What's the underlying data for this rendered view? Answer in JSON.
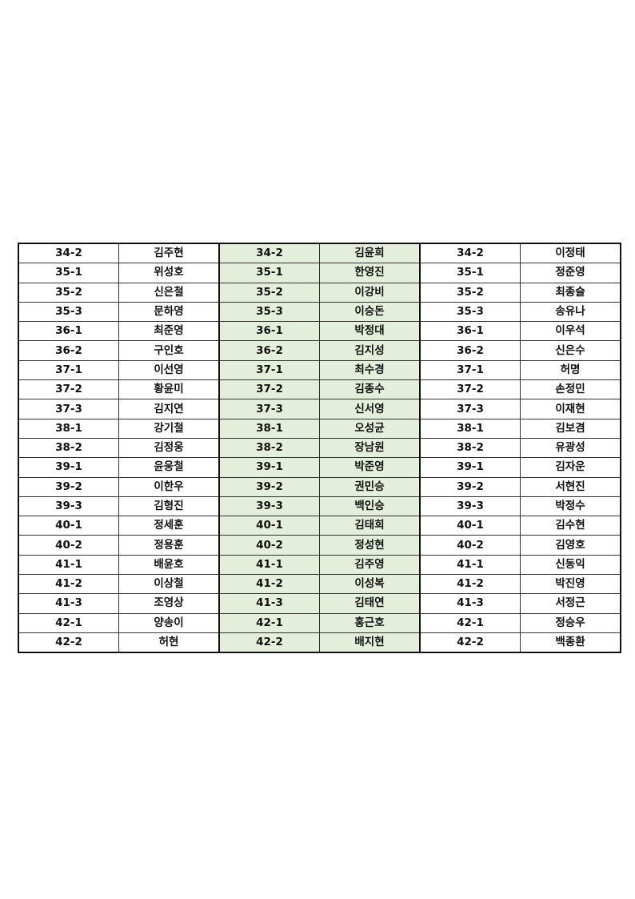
{
  "colors": {
    "middle_group_bg": "#e4efdb",
    "border": "#111111"
  },
  "table": {
    "groups": [
      {
        "rows": [
          [
            "34-2",
            "김주현"
          ],
          [
            "35-1",
            "위성호"
          ],
          [
            "35-2",
            "신은철"
          ],
          [
            "35-3",
            "문하영"
          ],
          [
            "36-1",
            "최준영"
          ],
          [
            "36-2",
            "구인호"
          ],
          [
            "37-1",
            "이선영"
          ],
          [
            "37-2",
            "황윤미"
          ],
          [
            "37-3",
            "김지연"
          ],
          [
            "38-1",
            "강기철"
          ],
          [
            "38-2",
            "김정웅"
          ],
          [
            "39-1",
            "윤웅철"
          ],
          [
            "39-2",
            "이한우"
          ],
          [
            "39-3",
            "김형진"
          ],
          [
            "40-1",
            "정세훈"
          ],
          [
            "40-2",
            "정용훈"
          ],
          [
            "41-1",
            "배윤호"
          ],
          [
            "41-2",
            "이상철"
          ],
          [
            "41-3",
            "조영상"
          ],
          [
            "42-1",
            "양송이"
          ],
          [
            "42-2",
            "허현"
          ]
        ]
      },
      {
        "rows": [
          [
            "34-2",
            "김윤희"
          ],
          [
            "35-1",
            "한영진"
          ],
          [
            "35-2",
            "이강비"
          ],
          [
            "35-3",
            "이승돈"
          ],
          [
            "36-1",
            "박정대"
          ],
          [
            "36-2",
            "김지성"
          ],
          [
            "37-1",
            "최수경"
          ],
          [
            "37-2",
            "김종수"
          ],
          [
            "37-3",
            "신서영"
          ],
          [
            "38-1",
            "오성균"
          ],
          [
            "38-2",
            "장남원"
          ],
          [
            "39-1",
            "박준영"
          ],
          [
            "39-2",
            "권민승"
          ],
          [
            "39-3",
            "백인승"
          ],
          [
            "40-1",
            "김태희"
          ],
          [
            "40-2",
            "정성현"
          ],
          [
            "41-1",
            "김주영"
          ],
          [
            "41-2",
            "이성복"
          ],
          [
            "41-3",
            "김태연"
          ],
          [
            "42-1",
            "홍근호"
          ],
          [
            "42-2",
            "배지현"
          ]
        ]
      },
      {
        "rows": [
          [
            "34-2",
            "이정태"
          ],
          [
            "35-1",
            "정준영"
          ],
          [
            "35-2",
            "최종슬"
          ],
          [
            "35-3",
            "송유나"
          ],
          [
            "36-1",
            "이우석"
          ],
          [
            "36-2",
            "신은수"
          ],
          [
            "37-1",
            "허명"
          ],
          [
            "37-2",
            "손정민"
          ],
          [
            "37-3",
            "이재현"
          ],
          [
            "38-1",
            "김보겸"
          ],
          [
            "38-2",
            "유광성"
          ],
          [
            "39-1",
            "김자운"
          ],
          [
            "39-2",
            "서현진"
          ],
          [
            "39-3",
            "박정수"
          ],
          [
            "40-1",
            "김수현"
          ],
          [
            "40-2",
            "김영호"
          ],
          [
            "41-1",
            "신동익"
          ],
          [
            "41-2",
            "박진영"
          ],
          [
            "41-3",
            "서정근"
          ],
          [
            "42-1",
            "정승우"
          ],
          [
            "42-2",
            "백종환"
          ]
        ]
      }
    ]
  }
}
